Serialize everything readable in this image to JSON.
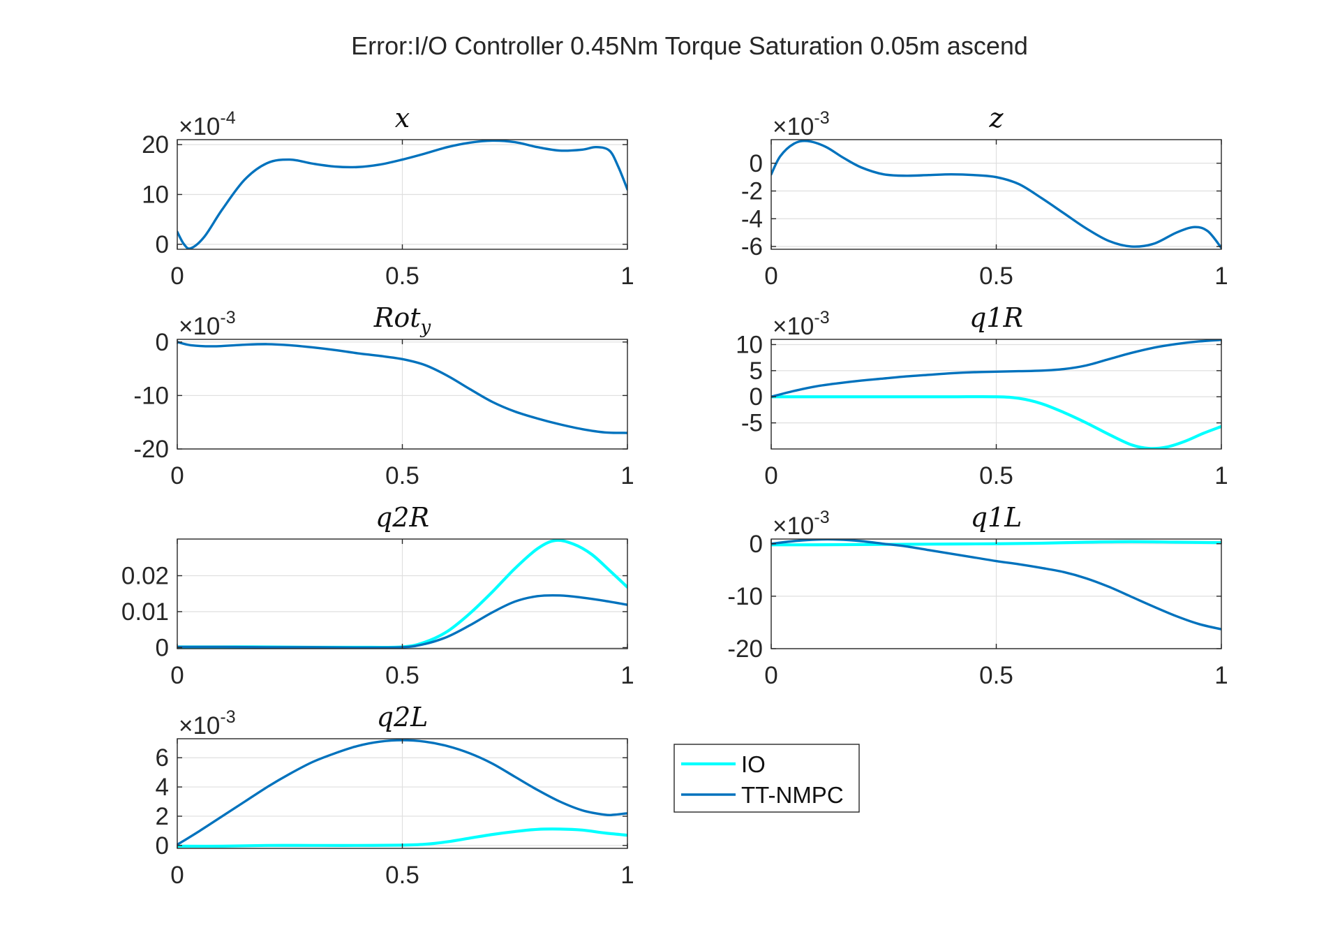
{
  "figure": {
    "title": "Error:I/O Controller 0.45Nm Torque Saturation 0.05m ascend"
  },
  "legend": {
    "position": "lower-right-empty-slot",
    "entries": [
      {
        "label": "IO",
        "color": "#00ffff"
      },
      {
        "label": "TT-NMPC",
        "color": "#0072bd"
      }
    ]
  },
  "colors": {
    "IO": "#00ffff",
    "TT-NMPC": "#0072bd",
    "axis": "#262626",
    "grid": "#dfdfdf"
  },
  "chart_data": [
    {
      "type": "line",
      "id": "x",
      "title": "x",
      "title_sub": "",
      "multiplier": {
        "base": "×10",
        "exp": "-4"
      },
      "xlim": [
        0,
        1
      ],
      "ylim": [
        -1,
        21
      ],
      "xticks": [
        0,
        0.5,
        1
      ],
      "xtick_labels": [
        "0",
        "0.5",
        "1"
      ],
      "yticks": [
        0,
        10,
        20
      ],
      "ytick_labels": [
        "0",
        "10",
        "20"
      ],
      "grid": true,
      "series": [
        {
          "name": "TT-NMPC",
          "x": [
            0,
            0.015,
            0.03,
            0.06,
            0.1,
            0.15,
            0.2,
            0.25,
            0.3,
            0.35,
            0.4,
            0.45,
            0.5,
            0.55,
            0.6,
            0.65,
            0.7,
            0.75,
            0.8,
            0.85,
            0.9,
            0.93,
            0.96,
            0.98,
            1.0
          ],
          "y": [
            2.5,
            0,
            -0.8,
            1.5,
            7,
            13,
            16.3,
            17,
            16.2,
            15.6,
            15.5,
            16,
            17,
            18.2,
            19.5,
            20.4,
            20.8,
            20.5,
            19.5,
            18.8,
            19,
            19.5,
            18.8,
            15.5,
            11
          ]
        }
      ]
    },
    {
      "type": "line",
      "id": "z",
      "title": "z",
      "title_sub": "",
      "multiplier": {
        "base": "×10",
        "exp": "-3"
      },
      "xlim": [
        0,
        1
      ],
      "ylim": [
        -6.2,
        1.7
      ],
      "xticks": [
        0,
        0.5,
        1
      ],
      "xtick_labels": [
        "0",
        "0.5",
        "1"
      ],
      "yticks": [
        0,
        -2,
        -4,
        -6
      ],
      "ytick_labels": [
        "0",
        "-2",
        "-4",
        "-6"
      ],
      "grid": true,
      "series": [
        {
          "name": "TT-NMPC",
          "x": [
            0,
            0.02,
            0.05,
            0.08,
            0.12,
            0.16,
            0.2,
            0.25,
            0.3,
            0.35,
            0.4,
            0.45,
            0.5,
            0.55,
            0.6,
            0.65,
            0.7,
            0.75,
            0.8,
            0.85,
            0.9,
            0.94,
            0.97,
            1.0
          ],
          "y": [
            -0.8,
            0.5,
            1.4,
            1.6,
            1.2,
            0.4,
            -0.3,
            -0.8,
            -0.9,
            -0.85,
            -0.8,
            -0.85,
            -1.0,
            -1.5,
            -2.5,
            -3.6,
            -4.7,
            -5.6,
            -6.0,
            -5.8,
            -5.0,
            -4.6,
            -4.9,
            -6.1
          ]
        }
      ]
    },
    {
      "type": "line",
      "id": "roty",
      "title": "Rot",
      "title_sub": "y",
      "multiplier": {
        "base": "×10",
        "exp": "-3"
      },
      "xlim": [
        0,
        1
      ],
      "ylim": [
        -20,
        0.5
      ],
      "xticks": [
        0,
        0.5,
        1
      ],
      "xtick_labels": [
        "0",
        "0.5",
        "1"
      ],
      "yticks": [
        0,
        -10,
        -20
      ],
      "ytick_labels": [
        "0",
        "-10",
        "-20"
      ],
      "grid": true,
      "series": [
        {
          "name": "TT-NMPC",
          "x": [
            0,
            0.03,
            0.08,
            0.15,
            0.2,
            0.25,
            0.3,
            0.35,
            0.4,
            0.45,
            0.5,
            0.55,
            0.6,
            0.65,
            0.7,
            0.75,
            0.8,
            0.85,
            0.9,
            0.95,
            1.0
          ],
          "y": [
            0,
            -0.6,
            -0.8,
            -0.5,
            -0.4,
            -0.6,
            -1.0,
            -1.5,
            -2.1,
            -2.6,
            -3.2,
            -4.3,
            -6.3,
            -8.8,
            -11.2,
            -13.0,
            -14.3,
            -15.4,
            -16.3,
            -16.9,
            -17.0
          ]
        }
      ]
    },
    {
      "type": "line",
      "id": "q1R",
      "title": "q1R",
      "title_sub": "",
      "multiplier": {
        "base": "×10",
        "exp": "-3"
      },
      "xlim": [
        0,
        1
      ],
      "ylim": [
        -10,
        11
      ],
      "xticks": [
        0,
        0.5,
        1
      ],
      "xtick_labels": [
        "0",
        "0.5",
        "1"
      ],
      "yticks": [
        10,
        5,
        0,
        -5
      ],
      "ytick_labels": [
        "10",
        "5",
        "0",
        "-5"
      ],
      "grid": true,
      "series": [
        {
          "name": "IO",
          "x": [
            0,
            0.1,
            0.2,
            0.3,
            0.4,
            0.5,
            0.55,
            0.6,
            0.65,
            0.7,
            0.75,
            0.8,
            0.84,
            0.88,
            0.92,
            0.96,
            1.0
          ],
          "y": [
            0,
            0,
            0,
            0,
            0,
            0,
            -0.3,
            -1.3,
            -3.0,
            -5.0,
            -7.2,
            -9.2,
            -9.9,
            -9.6,
            -8.5,
            -7.0,
            -5.7
          ]
        },
        {
          "name": "TT-NMPC",
          "x": [
            0,
            0.05,
            0.1,
            0.15,
            0.2,
            0.25,
            0.3,
            0.35,
            0.4,
            0.45,
            0.5,
            0.55,
            0.6,
            0.65,
            0.7,
            0.75,
            0.8,
            0.85,
            0.9,
            0.95,
            1.0
          ],
          "y": [
            0,
            1.1,
            2.0,
            2.6,
            3.1,
            3.5,
            3.9,
            4.2,
            4.5,
            4.7,
            4.8,
            4.9,
            5.0,
            5.3,
            6.0,
            7.2,
            8.4,
            9.4,
            10.1,
            10.6,
            10.9
          ]
        }
      ]
    },
    {
      "type": "line",
      "id": "q2R",
      "title": "q2R",
      "title_sub": "",
      "multiplier": {
        "base": "",
        "exp": ""
      },
      "xlim": [
        0,
        1
      ],
      "ylim": [
        -0.0003,
        0.0302
      ],
      "xticks": [
        0,
        0.5,
        1
      ],
      "xtick_labels": [
        "0",
        "0.5",
        "1"
      ],
      "yticks": [
        0,
        0.01,
        0.02
      ],
      "ytick_labels": [
        "0",
        "0.01",
        "0.02"
      ],
      "grid": true,
      "series": [
        {
          "name": "IO",
          "x": [
            0,
            0.1,
            0.2,
            0.3,
            0.4,
            0.5,
            0.55,
            0.6,
            0.65,
            0.7,
            0.75,
            0.8,
            0.84,
            0.88,
            0.92,
            0.96,
            1.0
          ],
          "y": [
            0.0002,
            0.0002,
            0.0002,
            0.0001,
            0.0001,
            0.0002,
            0.0015,
            0.0045,
            0.0095,
            0.0155,
            0.022,
            0.0275,
            0.0298,
            0.0288,
            0.026,
            0.0215,
            0.0168
          ]
        },
        {
          "name": "TT-NMPC",
          "x": [
            0,
            0.1,
            0.2,
            0.3,
            0.4,
            0.5,
            0.55,
            0.6,
            0.65,
            0.7,
            0.75,
            0.8,
            0.85,
            0.9,
            0.95,
            1.0
          ],
          "y": [
            0.0002,
            0.0002,
            0.0001,
            0.0001,
            0,
            0.0001,
            0.001,
            0.003,
            0.0062,
            0.0098,
            0.0128,
            0.0143,
            0.0145,
            0.0139,
            0.013,
            0.0119
          ]
        }
      ]
    },
    {
      "type": "line",
      "id": "q1L",
      "title": "q1L",
      "title_sub": "",
      "multiplier": {
        "base": "×10",
        "exp": "-3"
      },
      "xlim": [
        0,
        1
      ],
      "ylim": [
        -20,
        0.9
      ],
      "xticks": [
        0,
        0.5,
        1
      ],
      "xtick_labels": [
        "0",
        "0.5",
        "1"
      ],
      "yticks": [
        0,
        -10,
        -20
      ],
      "ytick_labels": [
        "0",
        "-10",
        "-20"
      ],
      "grid": true,
      "series": [
        {
          "name": "IO",
          "x": [
            0,
            0.1,
            0.2,
            0.3,
            0.4,
            0.5,
            0.6,
            0.7,
            0.8,
            0.9,
            1.0
          ],
          "y": [
            -0.2,
            -0.2,
            -0.15,
            -0.1,
            -0.05,
            0,
            0.1,
            0.3,
            0.4,
            0.3,
            0.2
          ]
        },
        {
          "name": "TT-NMPC",
          "x": [
            0,
            0.05,
            0.1,
            0.15,
            0.2,
            0.25,
            0.3,
            0.35,
            0.4,
            0.45,
            0.5,
            0.55,
            0.6,
            0.65,
            0.7,
            0.75,
            0.8,
            0.85,
            0.9,
            0.95,
            1.0
          ],
          "y": [
            0,
            0.5,
            0.8,
            0.8,
            0.5,
            0,
            -0.5,
            -1.2,
            -1.9,
            -2.6,
            -3.3,
            -3.9,
            -4.6,
            -5.4,
            -6.6,
            -8.2,
            -10.1,
            -12.0,
            -13.8,
            -15.3,
            -16.3
          ]
        }
      ]
    },
    {
      "type": "line",
      "id": "q2L",
      "title": "q2L",
      "title_sub": "",
      "multiplier": {
        "base": "×10",
        "exp": "-3"
      },
      "xlim": [
        0,
        1
      ],
      "ylim": [
        -0.2,
        7.3
      ],
      "xticks": [
        0,
        0.5,
        1
      ],
      "xtick_labels": [
        "0",
        "0.5",
        "1"
      ],
      "yticks": [
        0,
        2,
        4,
        6
      ],
      "ytick_labels": [
        "0",
        "2",
        "4",
        "6"
      ],
      "grid": true,
      "series": [
        {
          "name": "IO",
          "x": [
            0,
            0.1,
            0.2,
            0.3,
            0.4,
            0.5,
            0.55,
            0.6,
            0.65,
            0.7,
            0.75,
            0.8,
            0.85,
            0.9,
            0.95,
            1.0
          ],
          "y": [
            -0.05,
            -0.05,
            0,
            0,
            0,
            0.02,
            0.08,
            0.25,
            0.5,
            0.75,
            0.95,
            1.1,
            1.12,
            1.05,
            0.85,
            0.7
          ]
        },
        {
          "name": "TT-NMPC",
          "x": [
            0,
            0.05,
            0.1,
            0.15,
            0.2,
            0.25,
            0.3,
            0.35,
            0.4,
            0.45,
            0.5,
            0.55,
            0.6,
            0.65,
            0.7,
            0.75,
            0.8,
            0.85,
            0.9,
            0.95,
            0.97,
            1.0
          ],
          "y": [
            0.05,
            1.0,
            2.0,
            3.0,
            4.0,
            4.9,
            5.7,
            6.3,
            6.8,
            7.1,
            7.2,
            7.1,
            6.8,
            6.3,
            5.6,
            4.7,
            3.8,
            3.0,
            2.4,
            2.1,
            2.1,
            2.2
          ]
        }
      ]
    }
  ]
}
